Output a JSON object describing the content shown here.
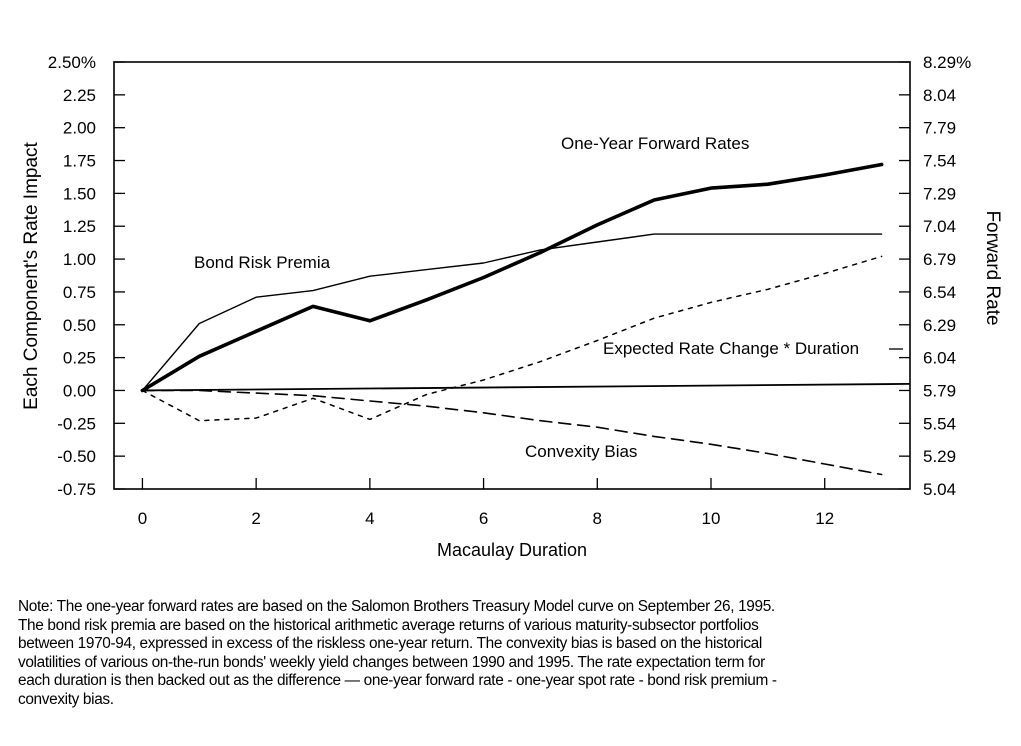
{
  "chart_data": {
    "type": "line",
    "xlabel": "Macaulay Duration",
    "ylabel": "Each Component's Rate Impact",
    "y2label": "Forward Rate",
    "xlim": [
      -0.5,
      13.5
    ],
    "ylim": [
      -0.75,
      2.5
    ],
    "y2lim": [
      5.04,
      8.29
    ],
    "x_ticks": [
      "0",
      "2",
      "4",
      "6",
      "8",
      "10",
      "12"
    ],
    "x_tick_values": [
      0,
      2,
      4,
      6,
      8,
      10,
      12
    ],
    "y_ticks": [
      "2.50%",
      "2.25",
      "2.00",
      "1.75",
      "1.50",
      "1.25",
      "1.00",
      "0.75",
      "0.50",
      "0.25",
      "0.00",
      "-0.25",
      "-0.50",
      "-0.75"
    ],
    "y_tick_values": [
      2.5,
      2.25,
      2.0,
      1.75,
      1.5,
      1.25,
      1.0,
      0.75,
      0.5,
      0.25,
      0.0,
      -0.25,
      -0.5,
      -0.75
    ],
    "y2_ticks": [
      "8.29%",
      "8.04",
      "7.79",
      "7.54",
      "7.29",
      "7.04",
      "6.79",
      "6.54",
      "6.29",
      "6.04",
      "5.79",
      "5.54",
      "5.29",
      "5.04"
    ],
    "grid": false,
    "series": [
      {
        "name": "One-Year Forward Rates",
        "style": "thick",
        "x": [
          0,
          1,
          2,
          3,
          4,
          5,
          6,
          7,
          8,
          9,
          10,
          11,
          12,
          13
        ],
        "y": [
          0.0,
          0.26,
          0.45,
          0.64,
          0.53,
          0.69,
          0.86,
          1.05,
          1.26,
          1.45,
          1.54,
          1.57,
          1.64,
          1.72
        ]
      },
      {
        "name": "Bond Risk Premia",
        "style": "thin",
        "x": [
          0,
          1,
          2,
          3,
          4,
          5,
          6,
          7,
          8,
          9,
          10,
          11,
          12,
          13
        ],
        "y": [
          0.0,
          0.51,
          0.71,
          0.76,
          0.87,
          0.92,
          0.97,
          1.07,
          1.13,
          1.19,
          1.19,
          1.19,
          1.19,
          1.19
        ]
      },
      {
        "name": "Expected Rate Change * Duration",
        "style": "dotted",
        "x": [
          0,
          1,
          2,
          3,
          4,
          5,
          6,
          7,
          8,
          9,
          10,
          11,
          12,
          13
        ],
        "y": [
          0.0,
          -0.23,
          -0.21,
          -0.06,
          -0.22,
          -0.03,
          0.08,
          0.22,
          0.38,
          0.55,
          0.67,
          0.77,
          0.89,
          1.02
        ]
      },
      {
        "name": "Convexity Bias",
        "style": "dashed",
        "x": [
          0,
          1,
          2,
          3,
          4,
          5,
          6,
          7,
          8,
          9,
          10,
          11,
          12,
          13
        ],
        "y": [
          0.0,
          0.0,
          -0.02,
          -0.04,
          -0.08,
          -0.12,
          -0.17,
          -0.23,
          -0.28,
          -0.35,
          -0.41,
          -0.48,
          -0.56,
          -0.64
        ]
      }
    ],
    "zero_line": {
      "x": [
        0,
        13.5
      ],
      "y": [
        0.0,
        0.05
      ]
    },
    "annotations": {
      "forward": "One-Year Forward Rates",
      "premia": "Bond Risk Premia",
      "expected": "Expected Rate Change * Duration",
      "convexity": "Convexity Bias"
    }
  },
  "note": {
    "lines": [
      "Note: The one-year forward rates are based on the Salomon Brothers Treasury Model curve on September 26, 1995.",
      "The bond risk premia are based on the historical arithmetic average returns of various maturity-subsector portfolios",
      "between 1970-94, expressed in excess of the riskless one-year return. The convexity bias is based on the historical",
      "volatilities of various on-the-run bonds' weekly yield changes between 1990 and 1995. The rate expectation term for",
      "each duration is then backed out as the difference — one-year forward rate - one-year spot rate - bond risk premium -",
      "convexity bias."
    ]
  }
}
